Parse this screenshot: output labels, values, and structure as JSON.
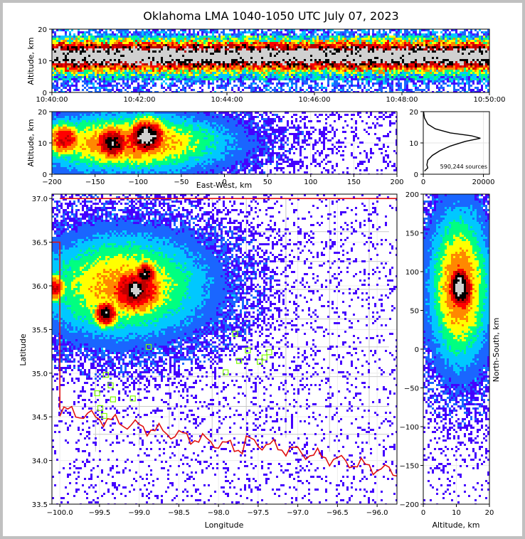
{
  "chart_data": {
    "type": "lightning-mapping-composite",
    "title": "Oklahoma LMA 1040-1050 UTC July 07, 2023",
    "colors": {
      "frame": "#c0c0c0",
      "state_border": "#e01010",
      "county_lines": "#c8c8c8",
      "stations": "#7cfc00",
      "profile_line": "#000000"
    },
    "density_colormap": [
      "#4400ff",
      "#1a66ff",
      "#00c8ff",
      "#00ff80",
      "#ffff00",
      "#ff8800",
      "#ff0000",
      "#bb0000",
      "#000000",
      "#d0d0d0"
    ],
    "panels": [
      {
        "name": "time-height",
        "type": "heatmap",
        "xlabel": "",
        "ylabel": "Altitude, km",
        "ylim": [
          0,
          20
        ],
        "yticks": [
          0,
          10,
          20
        ],
        "xticks": [
          "10:40:00",
          "10:42:00",
          "10:44:00",
          "10:46:00",
          "10:48:00",
          "10:50:00"
        ],
        "description": "continuous activity 10:40-10:50 UTC, dense core 9-14 km"
      },
      {
        "name": "east-west-altitude",
        "type": "heatmap",
        "xlabel": "East-West, km",
        "ylabel": "Altitude, km",
        "xlim": [
          -200,
          200
        ],
        "ylim": [
          0,
          20
        ],
        "xticks": [
          -200,
          -150,
          -100,
          -50,
          0,
          50,
          100,
          150,
          200
        ],
        "yticks": [
          0,
          10,
          20
        ],
        "density_cores": [
          {
            "x_km": -130,
            "alt_km": 10,
            "level": "high"
          },
          {
            "x_km": -90,
            "alt_km": 12,
            "level": "peak"
          },
          {
            "x_km": -185,
            "alt_km": 11,
            "level": "medium"
          }
        ]
      },
      {
        "name": "altitude-histogram",
        "type": "line",
        "xlim": [
          0,
          22000
        ],
        "ylim": [
          0,
          20
        ],
        "xticks": [
          0,
          20000
        ],
        "yticks": [
          0,
          10,
          20
        ],
        "annotation": "590,244 sources",
        "profile": [
          {
            "count": 400,
            "alt": 1.0
          },
          {
            "count": 1500,
            "alt": 2.0
          },
          {
            "count": 1200,
            "alt": 3.0
          },
          {
            "count": 1500,
            "alt": 4.5
          },
          {
            "count": 3000,
            "alt": 6.0
          },
          {
            "count": 5500,
            "alt": 7.5
          },
          {
            "count": 9000,
            "alt": 9.0
          },
          {
            "count": 14000,
            "alt": 10.5
          },
          {
            "count": 19000,
            "alt": 11.5
          },
          {
            "count": 16000,
            "alt": 12.3
          },
          {
            "count": 9000,
            "alt": 13.2
          },
          {
            "count": 4000,
            "alt": 14.5
          },
          {
            "count": 1500,
            "alt": 16.0
          },
          {
            "count": 400,
            "alt": 18.0
          },
          {
            "count": 100,
            "alt": 20.0
          }
        ]
      },
      {
        "name": "plan-view",
        "type": "heatmap",
        "xlabel": "Longitude",
        "ylabel": "Latitude",
        "xlim": [
          -100.1,
          -95.75
        ],
        "ylim": [
          33.5,
          37.05
        ],
        "xticks": [
          -100.0,
          -99.5,
          -99.0,
          -98.5,
          -98.0,
          -97.5,
          -97.0,
          -96.5,
          -96.0
        ],
        "xtick_labels": [
          "-100.0",
          "-99.5",
          "-99.0",
          "-98.5",
          "-98.0",
          "-97.5",
          "-97.0",
          "-96.5",
          "-96.0"
        ],
        "yticks": [
          33.5,
          34.0,
          34.5,
          35.0,
          35.5,
          36.0,
          36.5,
          37.0
        ],
        "ytick_labels": [
          "33.5",
          "34.0",
          "34.5",
          "35.0",
          "35.5",
          "36.0",
          "36.5",
          "37.0"
        ],
        "stations": [
          {
            "lon": -99.42,
            "lat": 34.98
          },
          {
            "lon": -99.36,
            "lat": 34.86
          },
          {
            "lon": -99.53,
            "lat": 34.77
          },
          {
            "lon": -99.33,
            "lat": 34.7
          },
          {
            "lon": -99.49,
            "lat": 34.6
          },
          {
            "lon": -99.44,
            "lat": 34.51
          },
          {
            "lon": -99.08,
            "lat": 34.71
          },
          {
            "lon": -98.88,
            "lat": 35.3
          },
          {
            "lon": -97.79,
            "lat": 35.45
          },
          {
            "lon": -97.63,
            "lat": 35.26
          },
          {
            "lon": -97.74,
            "lat": 35.14
          },
          {
            "lon": -97.48,
            "lat": 35.13
          },
          {
            "lon": -97.42,
            "lat": 35.18
          },
          {
            "lon": -97.36,
            "lat": 35.24
          },
          {
            "lon": -97.91,
            "lat": 35.01
          }
        ],
        "density_cores": [
          {
            "lon": -99.42,
            "lat": 35.68,
            "level": "high"
          },
          {
            "lon": -99.05,
            "lat": 35.95,
            "level": "peak"
          },
          {
            "lon": -98.92,
            "lat": 36.12,
            "level": "high"
          },
          {
            "lon": -100.07,
            "lat": 35.98,
            "level": "medium"
          }
        ]
      },
      {
        "name": "north-south-altitude",
        "type": "heatmap",
        "xlabel": "Altitude, km",
        "ylabel": "North-South, km",
        "xlim": [
          0,
          20
        ],
        "ylim": [
          -200,
          200
        ],
        "xticks": [
          0,
          10,
          20
        ],
        "yticks": [
          -200,
          -150,
          -100,
          -50,
          0,
          50,
          100,
          150,
          200
        ],
        "density_cores": [
          {
            "alt_km": 11,
            "ns_km": 80,
            "level": "peak"
          },
          {
            "alt_km": 12,
            "ns_km": 75,
            "level": "high"
          }
        ]
      }
    ]
  }
}
